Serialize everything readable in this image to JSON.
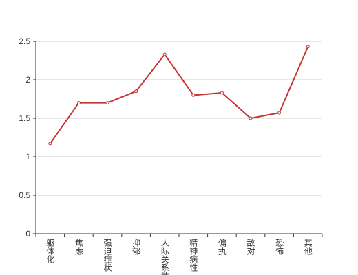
{
  "chart_data": {
    "type": "line",
    "categories": [
      "躯体化",
      "焦虑",
      "强迫症状",
      "抑郁",
      "人际关系敏感",
      "精神病性",
      "偏执",
      "敌对",
      "恐怖",
      "其他"
    ],
    "values": [
      1.17,
      1.7,
      1.7,
      1.85,
      2.33,
      1.8,
      1.83,
      1.5,
      1.57,
      2.43
    ],
    "color": "#c23531",
    "ylim": [
      0,
      2.5
    ],
    "yticks": [
      0,
      0.5,
      1,
      1.5,
      2,
      2.5
    ],
    "grid": true
  }
}
